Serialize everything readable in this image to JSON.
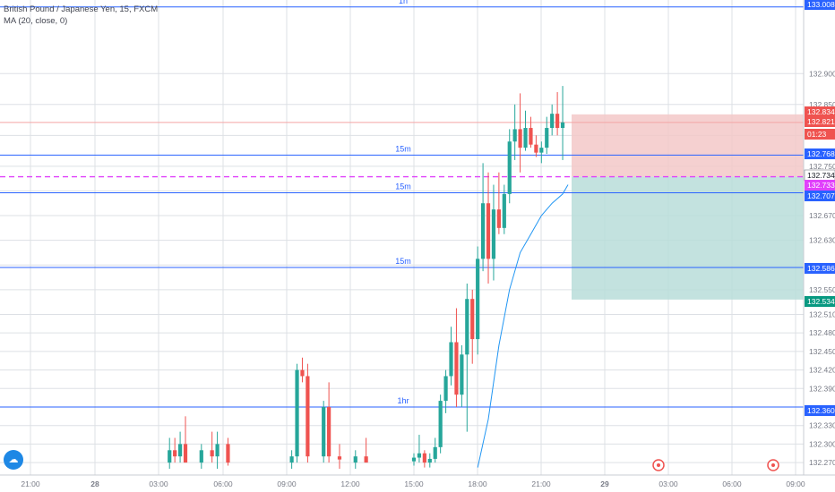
{
  "legend": {
    "symbol_line": "British Pound / Japanese Yen, 15, FXCM",
    "indicator_line": "MA (20, close, 0)"
  },
  "logo_icon": "tradingview-cloud-icon",
  "colors": {
    "bull": "#26a69a",
    "bear": "#ef5350",
    "level_line": "#2962ff",
    "ma": "#2196f3",
    "entry_dashed": "#e040fb",
    "stop_zone": "#f3c8c8",
    "target_zone": "#b8ddd9",
    "grid": "#dde0e5",
    "axis_text": "#787b86"
  },
  "price_axis": {
    "labels": [
      "132.900",
      "132.850",
      "132.750",
      "132.670",
      "132.630",
      "132.550",
      "132.510",
      "132.480",
      "132.450",
      "132.420",
      "132.390",
      "132.330",
      "132.300",
      "132.270"
    ],
    "badges": [
      {
        "price": "133.008",
        "color": "#2962ff"
      },
      {
        "price": "132.834",
        "color": "#ef5350"
      },
      {
        "price": "132.821",
        "color": "#ef5350"
      },
      {
        "price": "01:23",
        "color": "#ef5350"
      },
      {
        "price": "132.768",
        "color": "#2962ff"
      },
      {
        "price": "132.734",
        "color": "#ffffff"
      },
      {
        "price": "132.733",
        "color": "#e040fb"
      },
      {
        "price": "132.707",
        "color": "#2962ff"
      },
      {
        "price": "132.586",
        "color": "#2962ff"
      },
      {
        "price": "132.534",
        "color": "#089981"
      },
      {
        "price": "132.360",
        "color": "#2962ff"
      }
    ]
  },
  "time_axis": {
    "labels": [
      "21:00",
      "28",
      "03:00",
      "06:00",
      "09:00",
      "12:00",
      "15:00",
      "18:00",
      "21:00",
      "29",
      "03:00",
      "06:00",
      "09:00"
    ]
  },
  "levels": [
    {
      "price": 133.008,
      "label": "1h"
    },
    {
      "price": 132.768,
      "label": "15m"
    },
    {
      "price": 132.707,
      "label": "15m"
    },
    {
      "price": 132.586,
      "label": "15m"
    },
    {
      "price": 132.36,
      "label": "1hr"
    }
  ],
  "current_price_line": 132.821,
  "position": {
    "entry": 132.733,
    "stop": 132.834,
    "target": 132.534
  },
  "chart_data": {
    "type": "candlestick",
    "symbol": "British Pound / Japanese Yen",
    "interval": "15",
    "y_range": [
      132.26,
      133.012
    ],
    "x_range_hours": [
      -5,
      63
    ],
    "candles": [
      {
        "t": 15,
        "o": 132.272,
        "h": 132.285,
        "l": 132.265,
        "c": 132.278
      },
      {
        "t": 15.25,
        "o": 132.278,
        "h": 132.315,
        "l": 132.27,
        "c": 132.285
      },
      {
        "t": 15.5,
        "o": 132.285,
        "h": 132.29,
        "l": 132.262,
        "c": 132.27
      },
      {
        "t": 15.75,
        "o": 132.27,
        "h": 132.285,
        "l": 132.262,
        "c": 132.276
      },
      {
        "t": 16,
        "o": 132.276,
        "h": 132.31,
        "l": 132.27,
        "c": 132.295
      },
      {
        "t": 16.25,
        "o": 132.295,
        "h": 132.38,
        "l": 132.285,
        "c": 132.37
      },
      {
        "t": 16.5,
        "o": 132.37,
        "h": 132.42,
        "l": 132.35,
        "c": 132.41
      },
      {
        "t": 16.75,
        "o": 132.41,
        "h": 132.49,
        "l": 132.395,
        "c": 132.465
      },
      {
        "t": 17,
        "o": 132.465,
        "h": 132.52,
        "l": 132.36,
        "c": 132.38
      },
      {
        "t": 17.25,
        "o": 132.38,
        "h": 132.46,
        "l": 132.36,
        "c": 132.445
      },
      {
        "t": 17.5,
        "o": 132.445,
        "h": 132.56,
        "l": 132.32,
        "c": 132.535
      },
      {
        "t": 17.75,
        "o": 132.535,
        "h": 132.55,
        "l": 132.43,
        "c": 132.47
      },
      {
        "t": 18,
        "o": 132.47,
        "h": 132.62,
        "l": 132.445,
        "c": 132.6
      },
      {
        "t": 18.25,
        "o": 132.6,
        "h": 132.755,
        "l": 132.58,
        "c": 132.69
      },
      {
        "t": 18.5,
        "o": 132.69,
        "h": 132.74,
        "l": 132.56,
        "c": 132.6
      },
      {
        "t": 18.75,
        "o": 132.6,
        "h": 132.72,
        "l": 132.565,
        "c": 132.68
      },
      {
        "t": 19,
        "o": 132.68,
        "h": 132.74,
        "l": 132.64,
        "c": 132.65
      },
      {
        "t": 19.25,
        "o": 132.65,
        "h": 132.72,
        "l": 132.64,
        "c": 132.705
      },
      {
        "t": 19.5,
        "o": 132.705,
        "h": 132.81,
        "l": 132.69,
        "c": 132.79
      },
      {
        "t": 19.75,
        "o": 132.79,
        "h": 132.85,
        "l": 132.76,
        "c": 132.81
      },
      {
        "t": 20,
        "o": 132.81,
        "h": 132.868,
        "l": 132.74,
        "c": 132.78
      },
      {
        "t": 20.25,
        "o": 132.78,
        "h": 132.84,
        "l": 132.775,
        "c": 132.812
      },
      {
        "t": 20.5,
        "o": 132.812,
        "h": 132.83,
        "l": 132.78,
        "c": 132.785
      },
      {
        "t": 20.75,
        "o": 132.785,
        "h": 132.8,
        "l": 132.765,
        "c": 132.772
      },
      {
        "t": 21,
        "o": 132.772,
        "h": 132.79,
        "l": 132.755,
        "c": 132.78
      },
      {
        "t": 21.25,
        "o": 132.78,
        "h": 132.83,
        "l": 132.77,
        "c": 132.812
      },
      {
        "t": 21.5,
        "o": 132.812,
        "h": 132.85,
        "l": 132.8,
        "c": 132.835
      },
      {
        "t": 21.75,
        "o": 132.835,
        "h": 132.87,
        "l": 132.8,
        "c": 132.812
      },
      {
        "t": 22,
        "o": 132.812,
        "h": 132.88,
        "l": 132.76,
        "c": 132.821
      }
    ]
  }
}
